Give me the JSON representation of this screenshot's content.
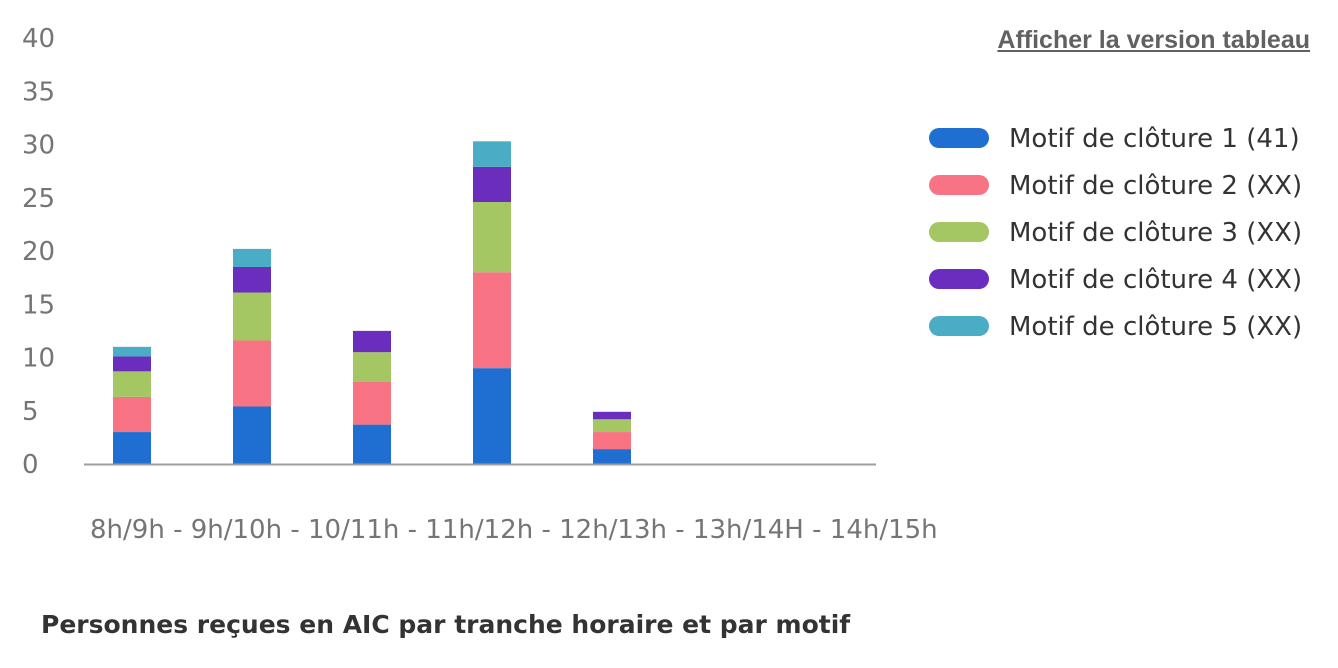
{
  "table_link": {
    "label": "Afficher la version tableau"
  },
  "caption": "Personnes reçues en AIC par tranche horaire et par motif",
  "chart_data": {
    "type": "bar",
    "stacked": true,
    "categories": [
      "8h/9h -",
      "9h/10h -",
      "10/11h -",
      "11h/12h -",
      "12h/13h -",
      "13h/14H -",
      "14h/15h"
    ],
    "ylim": [
      0,
      40
    ],
    "yticks": [
      0,
      5,
      10,
      15,
      20,
      25,
      30,
      35,
      40
    ],
    "grid": false,
    "legend_position": "right",
    "series": [
      {
        "name": "Motif de clôture 1 (41)",
        "color": "#1e6fd1",
        "values": [
          3,
          5.4,
          3.7,
          9,
          1.4,
          0,
          0
        ]
      },
      {
        "name": "Motif de clôture 2 (XX)",
        "color": "#f87384",
        "values": [
          3.3,
          6.2,
          4,
          9,
          1.6,
          0,
          0
        ]
      },
      {
        "name": "Motif de clôture 3 (XX)",
        "color": "#a4c663",
        "values": [
          2.4,
          4.5,
          2.8,
          6.6,
          1.2,
          0,
          0
        ]
      },
      {
        "name": "Motif de clôture 4 (XX)",
        "color": "#6a2dbd",
        "values": [
          1.4,
          2.4,
          2,
          3.3,
          0.7,
          0,
          0
        ]
      },
      {
        "name": "Motif de clôture 5 (XX)",
        "color": "#4bacc6",
        "values": [
          0.9,
          1.7,
          0,
          2.4,
          0,
          0,
          0
        ]
      }
    ]
  }
}
